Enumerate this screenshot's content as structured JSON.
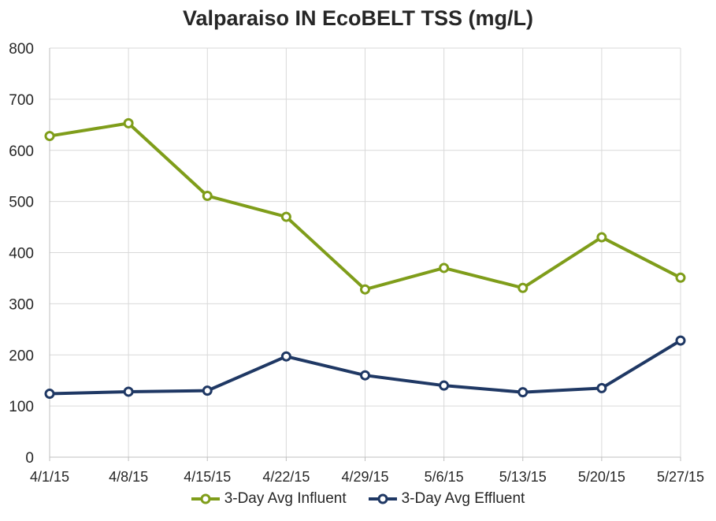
{
  "chart_data": {
    "type": "line",
    "title": "Valparaiso IN EcoBELT TSS (mg/L)",
    "x": [
      "4/1/15",
      "4/8/15",
      "4/15/15",
      "4/22/15",
      "4/29/15",
      "5/6/15",
      "5/13/15",
      "5/20/15",
      "5/27/15"
    ],
    "ylim": [
      0,
      800
    ],
    "yticks": [
      0,
      100,
      200,
      300,
      400,
      500,
      600,
      700,
      800
    ],
    "grid": true,
    "legend": "bottom",
    "series": [
      {
        "name": "3-Day Avg Influent",
        "color": "#7f9d1a",
        "values": [
          628,
          653,
          511,
          470,
          328,
          370,
          331,
          430,
          351
        ]
      },
      {
        "name": "3-Day Avg Effluent",
        "color": "#1f3864",
        "values": [
          124,
          128,
          130,
          197,
          160,
          140,
          127,
          135,
          228
        ]
      }
    ]
  }
}
